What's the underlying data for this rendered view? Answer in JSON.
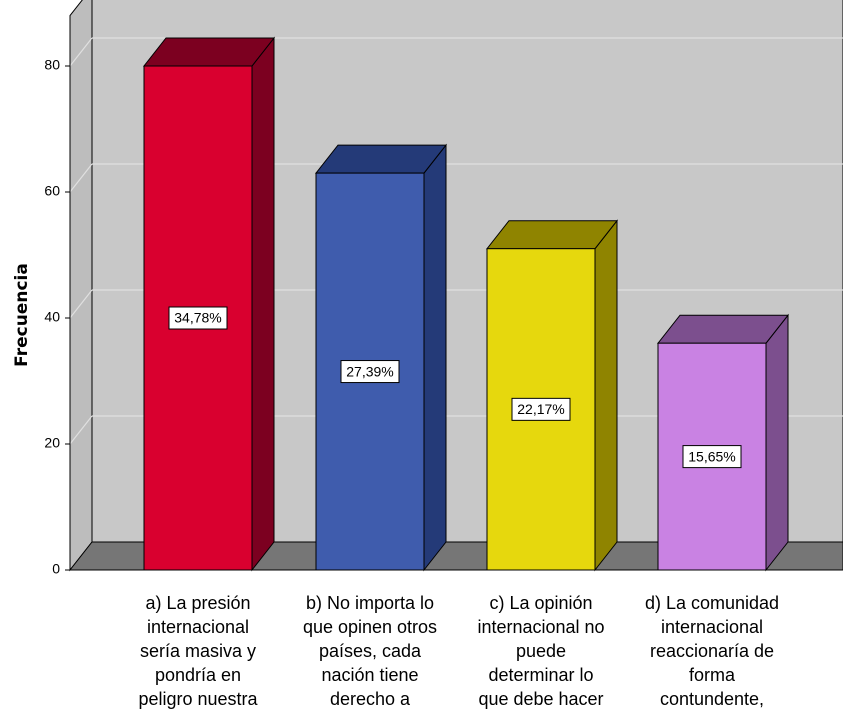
{
  "chart_data": {
    "type": "bar",
    "ylabel": "Frecuencia",
    "xlabel": "",
    "ylim": [
      0,
      80
    ],
    "yticks": [
      0,
      20,
      40,
      60,
      80
    ],
    "grid": true,
    "style": "3d",
    "categories": [
      [
        "a) La presión",
        "internacional",
        "sería masiva y",
        "pondría en",
        "peligro nuestra"
      ],
      [
        "b) No importa lo",
        "que opinen otros",
        "países, cada",
        "nación tiene",
        "derecho a"
      ],
      [
        "c) La opinión",
        "internacional no",
        "puede",
        "determinar lo",
        "que debe hacer"
      ],
      [
        "d) La comunidad",
        "internacional",
        "reaccionaría de",
        "forma",
        "contundente,"
      ]
    ],
    "values": [
      80,
      63,
      51,
      36
    ],
    "data_labels": [
      "34,78%",
      "27,39%",
      "22,17%",
      "15,65%"
    ],
    "colors": [
      {
        "front": "#d9002f",
        "side": "#7c0020",
        "top": "#7c0020"
      },
      {
        "front": "#3f5cad",
        "side": "#243a78",
        "top": "#243a78"
      },
      {
        "front": "#e6d80d",
        "side": "#8f8400",
        "top": "#8f8400"
      },
      {
        "front": "#c982e3",
        "side": "#7c4f8e",
        "top": "#7c4f8e"
      }
    ],
    "plot_background": "#c8c8c8",
    "floor_color": "#767676"
  }
}
